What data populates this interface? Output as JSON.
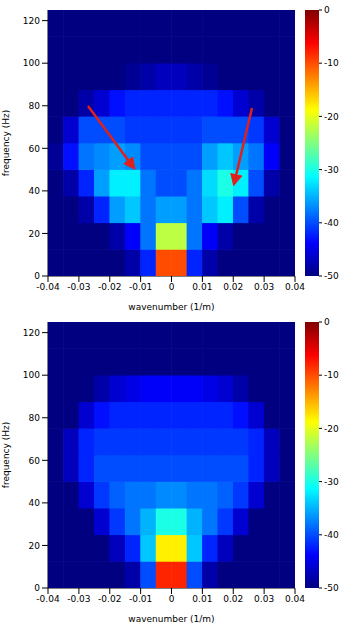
{
  "chart_data": [
    {
      "type": "heatmap",
      "xlabel": "wavenumber (1/m)",
      "ylabel": "frequency (Hz)",
      "x": [
        -0.0375,
        -0.0325,
        -0.0275,
        -0.0225,
        -0.0175,
        -0.0125,
        -0.0075,
        -0.0025,
        0.0025,
        0.0075,
        0.0125,
        0.0175,
        0.0225,
        0.0275,
        0.0325,
        0.0375
      ],
      "y": [
        6.25,
        18.75,
        31.25,
        43.75,
        56.25,
        68.75,
        81.25,
        93.75,
        106.25,
        118.75
      ],
      "cells": [
        [
          -50,
          -50,
          -50,
          -50,
          -50,
          -48,
          -42,
          -10,
          -10,
          -42,
          -48,
          -50,
          -50,
          -50,
          -50,
          -50
        ],
        [
          -50,
          -50,
          -50,
          -50,
          -48,
          -44,
          -38,
          -22,
          -22,
          -38,
          -44,
          -48,
          -50,
          -50,
          -50,
          -50
        ],
        [
          -50,
          -50,
          -48,
          -42,
          -36,
          -34,
          -38,
          -36,
          -36,
          -38,
          -34,
          -32,
          -40,
          -48,
          -50,
          -50
        ],
        [
          -50,
          -48,
          -42,
          -36,
          -32,
          -32,
          -38,
          -40,
          -40,
          -38,
          -33,
          -30,
          -32,
          -40,
          -48,
          -50
        ],
        [
          -49,
          -43,
          -38,
          -37,
          -36,
          -37,
          -40,
          -40,
          -40,
          -40,
          -36,
          -34,
          -36,
          -38,
          -44,
          -50
        ],
        [
          -50,
          -46,
          -40,
          -40,
          -40,
          -41,
          -41,
          -41,
          -41,
          -41,
          -40,
          -40,
          -40,
          -41,
          -46,
          -50
        ],
        [
          -50,
          -50,
          -48,
          -46,
          -43,
          -42,
          -42,
          -42,
          -42,
          -42,
          -42,
          -43,
          -46,
          -48,
          -50,
          -50
        ],
        [
          -50,
          -50,
          -50,
          -50,
          -50,
          -49,
          -48,
          -47,
          -47,
          -48,
          -49,
          -50,
          -50,
          -50,
          -50,
          -50
        ],
        [
          -50,
          -50,
          -50,
          -50,
          -50,
          -50,
          -50,
          -50,
          -50,
          -50,
          -50,
          -50,
          -50,
          -50,
          -50,
          -50
        ],
        [
          -50,
          -50,
          -50,
          -50,
          -50,
          -50,
          -50,
          -50,
          -50,
          -50,
          -50,
          -50,
          -50,
          -50,
          -50,
          -50
        ]
      ],
      "xlim": [
        -0.04,
        0.04
      ],
      "xticks": [
        -0.04,
        -0.03,
        -0.02,
        -0.01,
        0,
        0.01,
        0.02,
        0.03,
        0.04
      ],
      "ylim": [
        0,
        125
      ],
      "yticks": [
        0,
        20,
        40,
        60,
        80,
        100,
        120
      ],
      "colorbar_range": [
        -50,
        0
      ],
      "colorbar_ticks": [
        0,
        -10,
        -20,
        -30,
        -40,
        -50
      ]
    },
    {
      "type": "heatmap",
      "xlabel": "wavenumber (1/m)",
      "ylabel": "frequency (Hz)",
      "x": [
        -0.0375,
        -0.0325,
        -0.0275,
        -0.0225,
        -0.0175,
        -0.0125,
        -0.0075,
        -0.0025,
        0.0025,
        0.0075,
        0.0125,
        0.0175,
        0.0225,
        0.0275,
        0.0325,
        0.0375
      ],
      "y": [
        6.25,
        18.75,
        31.25,
        43.75,
        56.25,
        68.75,
        81.25,
        93.75,
        106.25,
        118.75
      ],
      "cells": [
        [
          -50,
          -50,
          -50,
          -50,
          -50,
          -48,
          -40,
          -8,
          -8,
          -40,
          -48,
          -50,
          -50,
          -50,
          -50,
          -50
        ],
        [
          -50,
          -50,
          -50,
          -50,
          -47,
          -42,
          -34,
          -18,
          -18,
          -34,
          -42,
          -47,
          -50,
          -50,
          -50,
          -50
        ],
        [
          -50,
          -50,
          -50,
          -46,
          -41,
          -38,
          -35,
          -30,
          -30,
          -35,
          -38,
          -41,
          -46,
          -50,
          -50,
          -50
        ],
        [
          -50,
          -50,
          -46,
          -41,
          -39,
          -38,
          -38,
          -37,
          -37,
          -38,
          -38,
          -39,
          -41,
          -46,
          -50,
          -50
        ],
        [
          -50,
          -47,
          -42,
          -40,
          -40,
          -40,
          -40,
          -40,
          -40,
          -40,
          -40,
          -40,
          -40,
          -42,
          -47,
          -50
        ],
        [
          -50,
          -47,
          -42,
          -41,
          -41,
          -41,
          -41,
          -41,
          -41,
          -41,
          -41,
          -41,
          -41,
          -42,
          -47,
          -50
        ],
        [
          -50,
          -50,
          -46,
          -43,
          -42,
          -42,
          -42,
          -42,
          -42,
          -42,
          -42,
          -42,
          -43,
          -46,
          -50,
          -50
        ],
        [
          -50,
          -50,
          -50,
          -48,
          -46,
          -45,
          -44,
          -44,
          -44,
          -44,
          -45,
          -46,
          -48,
          -50,
          -50,
          -50
        ],
        [
          -50,
          -50,
          -50,
          -50,
          -50,
          -50,
          -50,
          -50,
          -50,
          -50,
          -50,
          -50,
          -50,
          -50,
          -50,
          -50
        ],
        [
          -50,
          -50,
          -50,
          -50,
          -50,
          -50,
          -50,
          -50,
          -50,
          -50,
          -50,
          -50,
          -50,
          -50,
          -50,
          -50
        ]
      ],
      "xlim": [
        -0.04,
        0.04
      ],
      "xticks": [
        -0.04,
        -0.03,
        -0.02,
        -0.01,
        0,
        0.01,
        0.02,
        0.03,
        0.04
      ],
      "ylim": [
        0,
        125
      ],
      "yticks": [
        0,
        20,
        40,
        60,
        80,
        100,
        120
      ],
      "colorbar_range": [
        -50,
        0
      ],
      "colorbar_ticks": [
        0,
        -10,
        -20,
        -30,
        -40,
        -50
      ]
    }
  ]
}
